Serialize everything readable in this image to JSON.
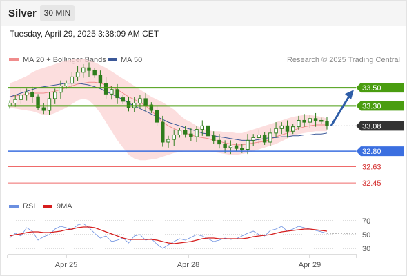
{
  "header": {
    "title": "Silver",
    "timeframe_label": "30 MIN",
    "timestamp": "Tuesday, April 29, 2025 3:38:09 AM CET"
  },
  "legend": {
    "ma20": "MA 20 + Bollinger Bands",
    "ma50": "MA 50",
    "source": "Research © 2025 Trading Central",
    "rsi": "RSI",
    "rsi_ma": "9MA"
  },
  "colors": {
    "candle": "#2e7d1c",
    "ma20": "#f08c8c",
    "bollinger_fill": "#fbd3d3",
    "ma50": "#3b5898",
    "resistance": "#4a9d10",
    "support_blue": "#3b6fe0",
    "support_red": "#ef6a6a",
    "current_price": "#333333",
    "forecast_arrow": "#2f5ea8",
    "rsi": "#6b8fe0",
    "rsi_ma": "#d61e1e"
  },
  "chart_data": [
    {
      "type": "candlestick",
      "ylim": [
        32.2,
        33.95
      ],
      "x_ticks": [
        "Apr 25",
        "Apr 28",
        "Apr 29"
      ],
      "current_price": 33.08,
      "levels": [
        {
          "value": 33.5,
          "label": "33.50",
          "kind": "resistance"
        },
        {
          "value": 33.3,
          "label": "33.30",
          "kind": "resistance"
        },
        {
          "value": 32.8,
          "label": "32.80",
          "kind": "support"
        },
        {
          "value": 32.63,
          "label": "32.63",
          "kind": "support"
        },
        {
          "value": 32.45,
          "label": "32.45",
          "kind": "support"
        }
      ],
      "current_label": "33.08",
      "forecast_target": 33.5,
      "close": [
        33.33,
        33.37,
        33.42,
        33.45,
        33.4,
        33.28,
        33.25,
        33.38,
        33.45,
        33.52,
        33.55,
        33.62,
        33.67,
        33.72,
        33.69,
        33.64,
        33.55,
        33.43,
        33.48,
        33.39,
        33.35,
        33.28,
        33.33,
        33.38,
        33.31,
        33.25,
        33.12,
        32.9,
        32.93,
        32.98,
        33.03,
        32.99,
        32.96,
        33.04,
        33.08,
        32.97,
        32.92,
        32.88,
        32.84,
        32.86,
        32.83,
        32.82,
        32.92,
        32.95,
        32.98,
        32.9,
        33.0,
        33.05,
        33.08,
        33.02,
        33.07,
        33.14,
        33.12,
        33.16,
        33.14,
        33.13,
        33.08
      ],
      "ma20": [
        33.4,
        33.41,
        33.42,
        33.43,
        33.44,
        33.44,
        33.44,
        33.45,
        33.46,
        33.48,
        33.5,
        33.52,
        33.54,
        33.55,
        33.56,
        33.56,
        33.55,
        33.53,
        33.51,
        33.48,
        33.44,
        33.4,
        33.37,
        33.34,
        33.3,
        33.25,
        33.18,
        33.12,
        33.08,
        33.05,
        33.02,
        33.0,
        32.98,
        32.96,
        32.95,
        32.94,
        32.92,
        32.91,
        32.89,
        32.88,
        32.87,
        32.87,
        32.88,
        32.89,
        32.9,
        32.91,
        32.93,
        32.96,
        32.98,
        33.0,
        33.03,
        33.05,
        33.07,
        33.08,
        33.09,
        33.09,
        33.09
      ],
      "bollinger_upper": [
        33.55,
        33.57,
        33.6,
        33.63,
        33.67,
        33.7,
        33.72,
        33.74,
        33.76,
        33.78,
        33.8,
        33.81,
        33.82,
        33.82,
        33.8,
        33.78,
        33.75,
        33.72,
        33.68,
        33.64,
        33.6,
        33.56,
        33.52,
        33.48,
        33.44,
        33.4,
        33.37,
        33.34,
        33.3,
        33.26,
        33.2,
        33.15,
        33.12,
        33.08,
        33.05,
        33.03,
        33.02,
        33.02,
        33.01,
        33.01,
        33.0,
        33.0,
        33.02,
        33.04,
        33.06,
        33.08,
        33.1,
        33.12,
        33.14,
        33.16,
        33.18,
        33.19,
        33.2,
        33.2,
        33.19,
        33.18,
        33.16
      ],
      "bollinger_lower": [
        33.28,
        33.27,
        33.26,
        33.25,
        33.24,
        33.22,
        33.2,
        33.2,
        33.22,
        33.25,
        33.28,
        33.32,
        33.36,
        33.38,
        33.36,
        33.3,
        33.22,
        33.12,
        33.02,
        32.92,
        32.84,
        32.76,
        32.72,
        32.7,
        32.7,
        32.71,
        32.72,
        32.74,
        32.76,
        32.78,
        32.79,
        32.8,
        32.8,
        32.8,
        32.8,
        32.8,
        32.79,
        32.78,
        32.77,
        32.76,
        32.76,
        32.77,
        32.78,
        32.8,
        32.82,
        32.84,
        32.86,
        32.88,
        32.91,
        32.94,
        32.97,
        32.99,
        33.0,
        33.01,
        33.02,
        33.02,
        33.02
      ],
      "ma50": [
        33.4,
        33.42,
        33.44,
        33.46,
        33.48,
        33.5,
        33.51,
        33.52,
        33.53,
        33.54,
        33.55,
        33.55,
        33.55,
        33.54,
        33.53,
        33.51,
        33.49,
        33.46,
        33.43,
        33.4,
        33.37,
        33.33,
        33.3,
        33.27,
        33.24,
        33.21,
        33.18,
        33.15,
        33.12,
        33.1,
        33.08,
        33.06,
        33.04,
        33.02,
        33.0,
        32.99,
        32.97,
        32.96,
        32.95,
        32.94,
        32.93,
        32.92,
        32.92,
        32.92,
        32.93,
        32.94,
        32.95,
        32.95,
        32.96,
        32.96,
        32.97,
        32.97,
        32.98,
        32.98,
        32.99,
        32.99,
        33.0
      ]
    },
    {
      "type": "line",
      "title": "RSI",
      "y_ticks": [
        70,
        50,
        30
      ],
      "ylim": [
        20,
        80
      ],
      "series": [
        {
          "name": "RSI",
          "values": [
            45,
            52,
            48,
            60,
            55,
            42,
            47,
            50,
            58,
            62,
            60,
            57,
            64,
            66,
            60,
            52,
            45,
            48,
            40,
            42,
            45,
            38,
            48,
            50,
            42,
            44,
            36,
            30,
            35,
            40,
            44,
            42,
            46,
            50,
            48,
            44,
            40,
            42,
            45,
            43,
            44,
            48,
            52,
            55,
            50,
            48,
            56,
            58,
            62,
            55,
            58,
            62,
            60,
            58,
            56,
            54,
            52
          ]
        },
        {
          "name": "9MA",
          "values": [
            48,
            50,
            51,
            53,
            54,
            54,
            53,
            53,
            54,
            55,
            57,
            58,
            60,
            61,
            61,
            60,
            57,
            54,
            51,
            48,
            45,
            43,
            43,
            43,
            43,
            43,
            42,
            40,
            38,
            37,
            38,
            39,
            40,
            42,
            44,
            45,
            45,
            44,
            44,
            44,
            44,
            44,
            45,
            47,
            48,
            49,
            50,
            52,
            54,
            55,
            56,
            57,
            58,
            58,
            57,
            56,
            55
          ]
        }
      ]
    }
  ]
}
